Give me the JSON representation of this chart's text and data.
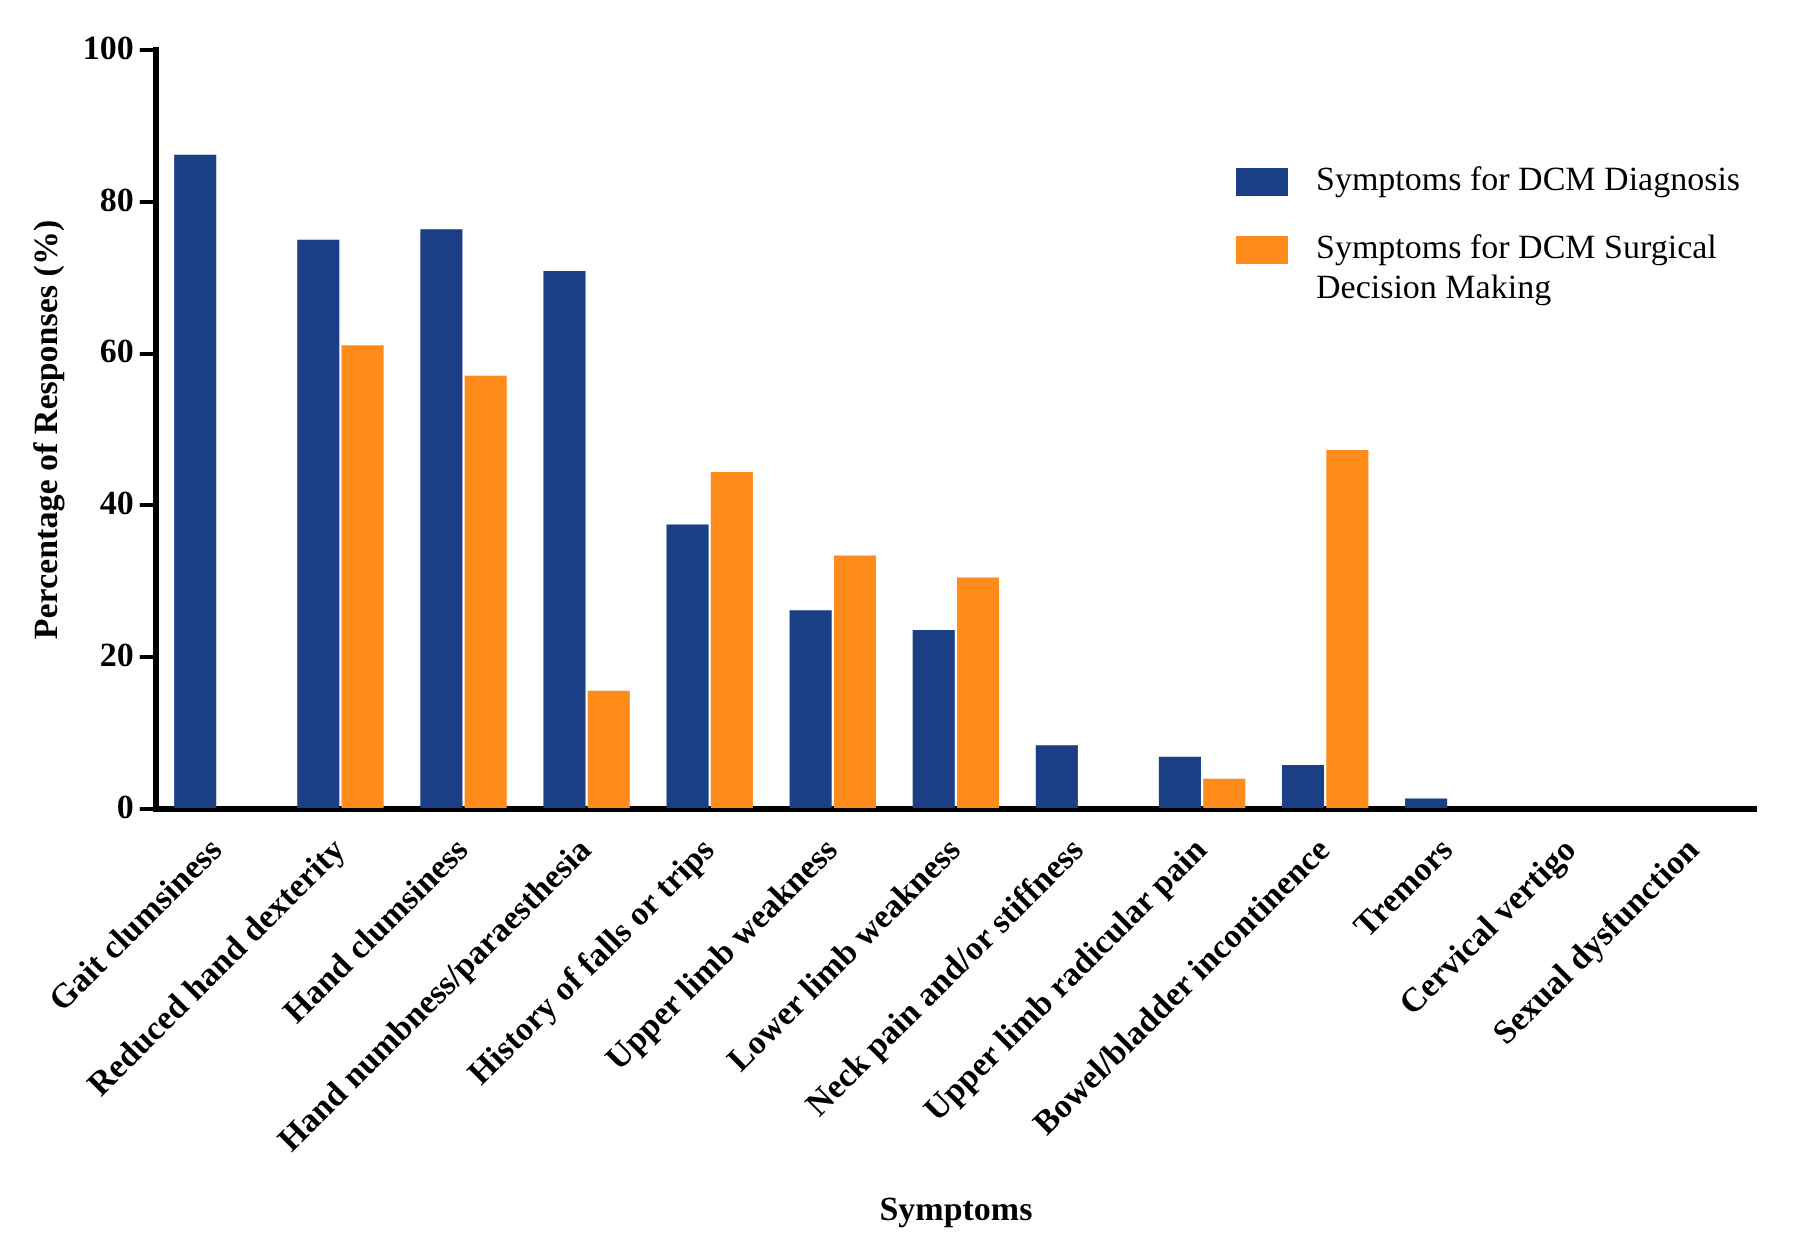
{
  "chart_data": {
    "type": "bar",
    "xlabel": "Symptoms",
    "ylabel": "Percentage of Responses (%)",
    "categories": [
      "Gait clumsiness",
      "Reduced hand dexterity",
      "Hand clumsiness",
      "Hand numbness/paraesthesia",
      "History of falls or trips",
      "Upper limb weakness",
      "Lower limb weakness",
      "Neck pain and/or stiffness",
      "Upper limb radicular pain",
      "Bowel/bladder incontinence",
      "Tremors",
      "Cervical vertigo",
      "Sexual dysfunction"
    ],
    "series": [
      {
        "name": "Symptoms for DCM Diagnosis",
        "color": "#1a3f85",
        "values": [
          86.2,
          75,
          76.4,
          70.9,
          37.5,
          26.2,
          23.6,
          8.4,
          6.9,
          5.8,
          1.4,
          0,
          0
        ]
      },
      {
        "name": "Symptoms for DCM Surgical Decision Making",
        "color": "#ff8c1a",
        "values": [
          0,
          61.1,
          57.1,
          15.6,
          44.4,
          33.4,
          30.5,
          0,
          4,
          47.3,
          0,
          0,
          0
        ]
      }
    ],
    "ylim": [
      0,
      100
    ],
    "yticks": [
      0,
      20,
      40,
      60,
      80,
      100
    ],
    "grid": false,
    "legend": "top right"
  }
}
